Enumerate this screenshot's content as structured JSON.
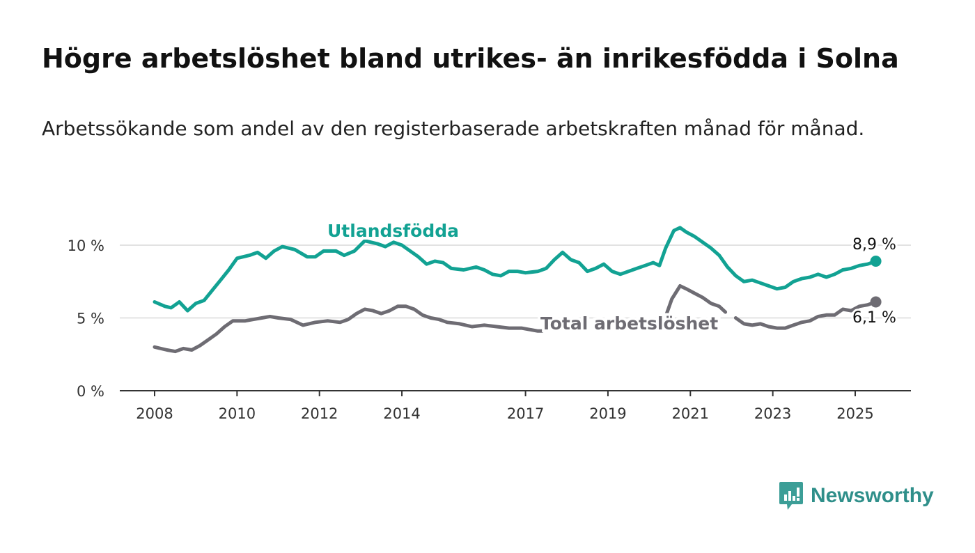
{
  "title": "Högre arbetslöshet bland utrikes- än inrikesfödda i Solna",
  "subtitle": "Arbetssökande som andel av den registerbaserade arbetskraften månad för månad.",
  "brand": {
    "name": "Newsworthy"
  },
  "colors": {
    "foreign": "#12a293",
    "total": "#6e6c73",
    "axis": "#333333",
    "grid": "#d9d9d9"
  },
  "chart_data": {
    "type": "line",
    "x_ticks": [
      "2008",
      "2010",
      "2012",
      "2014",
      "2017",
      "2019",
      "2021",
      "2023",
      "2025"
    ],
    "x_tick_values": [
      2008.0,
      2010.0,
      2012.0,
      2014.0,
      2017.0,
      2019.0,
      2021.0,
      2023.0,
      2025.0
    ],
    "y_ticks": [
      "0 %",
      "5 %",
      "10 %"
    ],
    "y_tick_values": [
      0,
      5,
      10
    ],
    "ylim": [
      0,
      10
    ],
    "xlim": [
      2008.0,
      2025.5
    ],
    "grid": "horizontal",
    "series": [
      {
        "name": "Utlandsfödda",
        "color": "#12a293",
        "end_label": "8,9 %",
        "points": [
          [
            2008.0,
            6.1
          ],
          [
            2008.25,
            5.8
          ],
          [
            2008.4,
            5.7
          ],
          [
            2008.6,
            6.1
          ],
          [
            2008.8,
            5.5
          ],
          [
            2009.0,
            6.0
          ],
          [
            2009.2,
            6.2
          ],
          [
            2009.4,
            6.9
          ],
          [
            2009.6,
            7.6
          ],
          [
            2009.8,
            8.3
          ],
          [
            2010.0,
            9.1
          ],
          [
            2010.3,
            9.3
          ],
          [
            2010.5,
            9.5
          ],
          [
            2010.7,
            9.1
          ],
          [
            2010.9,
            9.6
          ],
          [
            2011.1,
            9.9
          ],
          [
            2011.4,
            9.7
          ],
          [
            2011.7,
            9.2
          ],
          [
            2011.9,
            9.2
          ],
          [
            2012.1,
            9.6
          ],
          [
            2012.4,
            9.6
          ],
          [
            2012.6,
            9.3
          ],
          [
            2012.85,
            9.6
          ],
          [
            2013.1,
            10.3
          ],
          [
            2013.4,
            10.1
          ],
          [
            2013.6,
            9.9
          ],
          [
            2013.8,
            10.2
          ],
          [
            2014.0,
            10.0
          ],
          [
            2014.2,
            9.6
          ],
          [
            2014.4,
            9.2
          ],
          [
            2014.6,
            8.7
          ],
          [
            2014.8,
            8.9
          ],
          [
            2015.0,
            8.8
          ],
          [
            2015.2,
            8.4
          ],
          [
            2015.5,
            8.3
          ],
          [
            2015.8,
            8.5
          ],
          [
            2016.0,
            8.3
          ],
          [
            2016.2,
            8.0
          ],
          [
            2016.4,
            7.9
          ],
          [
            2016.6,
            8.2
          ],
          [
            2016.8,
            8.2
          ],
          [
            2017.0,
            8.1
          ],
          [
            2017.3,
            8.2
          ],
          [
            2017.5,
            8.4
          ],
          [
            2017.7,
            9.0
          ],
          [
            2017.9,
            9.5
          ],
          [
            2018.1,
            9.0
          ],
          [
            2018.3,
            8.8
          ],
          [
            2018.5,
            8.2
          ],
          [
            2018.7,
            8.4
          ],
          [
            2018.9,
            8.7
          ],
          [
            2019.1,
            8.2
          ],
          [
            2019.3,
            8.0
          ],
          [
            2019.5,
            8.2
          ],
          [
            2019.7,
            8.4
          ],
          [
            2019.9,
            8.6
          ],
          [
            2020.1,
            8.8
          ],
          [
            2020.25,
            8.6
          ],
          [
            2020.4,
            9.8
          ],
          [
            2020.6,
            11.0
          ],
          [
            2020.75,
            11.2
          ],
          [
            2020.9,
            10.9
          ],
          [
            2021.1,
            10.6
          ],
          [
            2021.3,
            10.2
          ],
          [
            2021.5,
            9.8
          ],
          [
            2021.7,
            9.3
          ],
          [
            2021.9,
            8.5
          ],
          [
            2022.1,
            7.9
          ],
          [
            2022.3,
            7.5
          ],
          [
            2022.5,
            7.6
          ],
          [
            2022.7,
            7.4
          ],
          [
            2022.9,
            7.2
          ],
          [
            2023.1,
            7.0
          ],
          [
            2023.3,
            7.1
          ],
          [
            2023.5,
            7.5
          ],
          [
            2023.7,
            7.7
          ],
          [
            2023.9,
            7.8
          ],
          [
            2024.1,
            8.0
          ],
          [
            2024.3,
            7.8
          ],
          [
            2024.5,
            8.0
          ],
          [
            2024.7,
            8.3
          ],
          [
            2024.9,
            8.4
          ],
          [
            2025.1,
            8.6
          ],
          [
            2025.3,
            8.7
          ],
          [
            2025.5,
            8.9
          ]
        ]
      },
      {
        "name": "Total arbetslöshet",
        "color": "#6e6c73",
        "end_label": "6,1 %",
        "points": [
          [
            2008.0,
            3.0
          ],
          [
            2008.3,
            2.8
          ],
          [
            2008.5,
            2.7
          ],
          [
            2008.7,
            2.9
          ],
          [
            2008.9,
            2.8
          ],
          [
            2009.1,
            3.1
          ],
          [
            2009.3,
            3.5
          ],
          [
            2009.5,
            3.9
          ],
          [
            2009.7,
            4.4
          ],
          [
            2009.9,
            4.8
          ],
          [
            2010.2,
            4.8
          ],
          [
            2010.4,
            4.9
          ],
          [
            2010.6,
            5.0
          ],
          [
            2010.8,
            5.1
          ],
          [
            2011.0,
            5.0
          ],
          [
            2011.3,
            4.9
          ],
          [
            2011.6,
            4.5
          ],
          [
            2011.9,
            4.7
          ],
          [
            2012.2,
            4.8
          ],
          [
            2012.5,
            4.7
          ],
          [
            2012.7,
            4.9
          ],
          [
            2012.9,
            5.3
          ],
          [
            2013.1,
            5.6
          ],
          [
            2013.3,
            5.5
          ],
          [
            2013.5,
            5.3
          ],
          [
            2013.7,
            5.5
          ],
          [
            2013.9,
            5.8
          ],
          [
            2014.1,
            5.8
          ],
          [
            2014.3,
            5.6
          ],
          [
            2014.5,
            5.2
          ],
          [
            2014.7,
            5.0
          ],
          [
            2014.9,
            4.9
          ],
          [
            2015.1,
            4.7
          ],
          [
            2015.4,
            4.6
          ],
          [
            2015.7,
            4.4
          ],
          [
            2016.0,
            4.5
          ],
          [
            2016.3,
            4.4
          ],
          [
            2016.6,
            4.3
          ],
          [
            2016.9,
            4.3
          ],
          [
            2017.1,
            4.2
          ],
          [
            2017.3,
            4.1
          ],
          [
            2017.4,
            4.1
          ]
        ],
        "points_2": [
          [
            2020.4,
            5.1
          ],
          [
            2020.55,
            6.3
          ],
          [
            2020.75,
            7.2
          ],
          [
            2020.9,
            7.0
          ],
          [
            2021.1,
            6.7
          ],
          [
            2021.3,
            6.4
          ],
          [
            2021.5,
            6.0
          ],
          [
            2021.7,
            5.8
          ],
          [
            2021.85,
            5.4
          ]
        ],
        "points_3": [
          [
            2022.1,
            5.0
          ],
          [
            2022.3,
            4.6
          ],
          [
            2022.5,
            4.5
          ],
          [
            2022.7,
            4.6
          ],
          [
            2022.9,
            4.4
          ],
          [
            2023.1,
            4.3
          ],
          [
            2023.3,
            4.3
          ],
          [
            2023.5,
            4.5
          ],
          [
            2023.7,
            4.7
          ],
          [
            2023.9,
            4.8
          ],
          [
            2024.1,
            5.1
          ],
          [
            2024.3,
            5.2
          ],
          [
            2024.5,
            5.2
          ],
          [
            2024.7,
            5.6
          ],
          [
            2024.9,
            5.5
          ],
          [
            2025.1,
            5.8
          ],
          [
            2025.3,
            5.9
          ],
          [
            2025.5,
            6.1
          ]
        ]
      }
    ]
  }
}
